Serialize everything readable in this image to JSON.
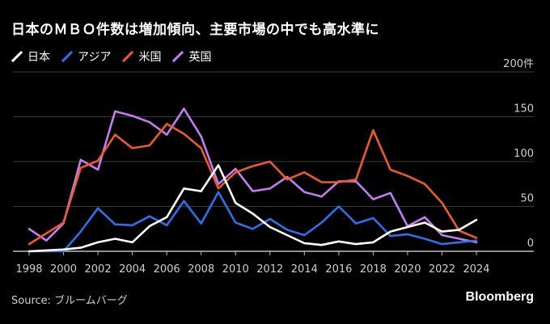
{
  "title": "日本のＭＢＯ件数は増加傾向、主要市場の中でも高水準に",
  "source": "Source: ブルームバーグ",
  "brand": "Bloomberg",
  "chart_data": {
    "type": "line",
    "x": [
      1998,
      1999,
      2000,
      2001,
      2002,
      2003,
      2004,
      2005,
      2006,
      2007,
      2008,
      2009,
      2010,
      2011,
      2012,
      2013,
      2014,
      2015,
      2016,
      2017,
      2018,
      2019,
      2020,
      2021,
      2022,
      2023,
      2024
    ],
    "xticks": [
      "1998",
      "2000",
      "2002",
      "2004",
      "2006",
      "2008",
      "2010",
      "2012",
      "2014",
      "2016",
      "2018",
      "2020",
      "2022",
      "2024"
    ],
    "yticks": [
      "0",
      "50",
      "100",
      "150",
      "200件"
    ],
    "ylim": [
      0,
      200
    ],
    "grid": true,
    "legend_position": "top-left",
    "series": [
      {
        "name": "日本",
        "color": "#ffffff",
        "values": [
          0,
          1,
          2,
          4,
          10,
          14,
          10,
          28,
          38,
          70,
          67,
          96,
          54,
          42,
          27,
          18,
          9,
          7,
          11,
          8,
          10,
          22,
          27,
          32,
          22,
          24,
          35
        ]
      },
      {
        "name": "アジア",
        "color": "#2f6fea",
        "values": [
          0,
          0,
          0,
          22,
          48,
          30,
          29,
          39,
          29,
          56,
          31,
          66,
          32,
          25,
          36,
          24,
          18,
          32,
          50,
          31,
          37,
          17,
          19,
          14,
          8,
          10,
          12
        ]
      },
      {
        "name": "米国",
        "color": "#ee5a2e",
        "values": [
          8,
          20,
          32,
          93,
          101,
          130,
          115,
          118,
          142,
          131,
          115,
          70,
          88,
          95,
          100,
          80,
          88,
          77,
          77,
          80,
          135,
          91,
          84,
          75,
          54,
          23,
          15
        ]
      },
      {
        "name": "英国",
        "color": "#c27ef0",
        "values": [
          25,
          12,
          31,
          102,
          91,
          156,
          151,
          144,
          130,
          159,
          128,
          75,
          92,
          67,
          70,
          83,
          66,
          61,
          78,
          78,
          58,
          65,
          28,
          38,
          18,
          14,
          10
        ]
      }
    ]
  }
}
